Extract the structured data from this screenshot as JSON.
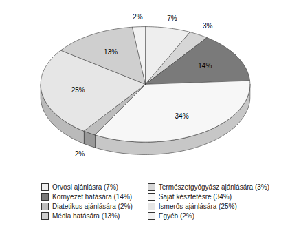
{
  "chart_data": {
    "type": "pie",
    "categories": [
      "Orvosi ajánlásra (7%)",
      "Természetgyógyász ajánlására (3%)",
      "Környezet hatására (14%)",
      "Saját késztetésre (34%)",
      "Diatetikus ajánlására (2%)",
      "Ismerős ajánlására (25%)",
      "Média hatására (13%)",
      "Egyéb (2%)"
    ],
    "values": [
      7,
      3,
      14,
      34,
      2,
      25,
      13,
      2
    ],
    "value_labels": [
      "7%",
      "3%",
      "14%",
      "34%",
      "2%",
      "25%",
      "13%",
      "2%"
    ],
    "colors": [
      "#eeeeee",
      "#d6d6d6",
      "#7a7a7a",
      "#f7f7f7",
      "#bdbdbd",
      "#e6e6e6",
      "#cfcfcf",
      "#f2f2f2"
    ],
    "data_labels": true,
    "legend": "bottom"
  }
}
